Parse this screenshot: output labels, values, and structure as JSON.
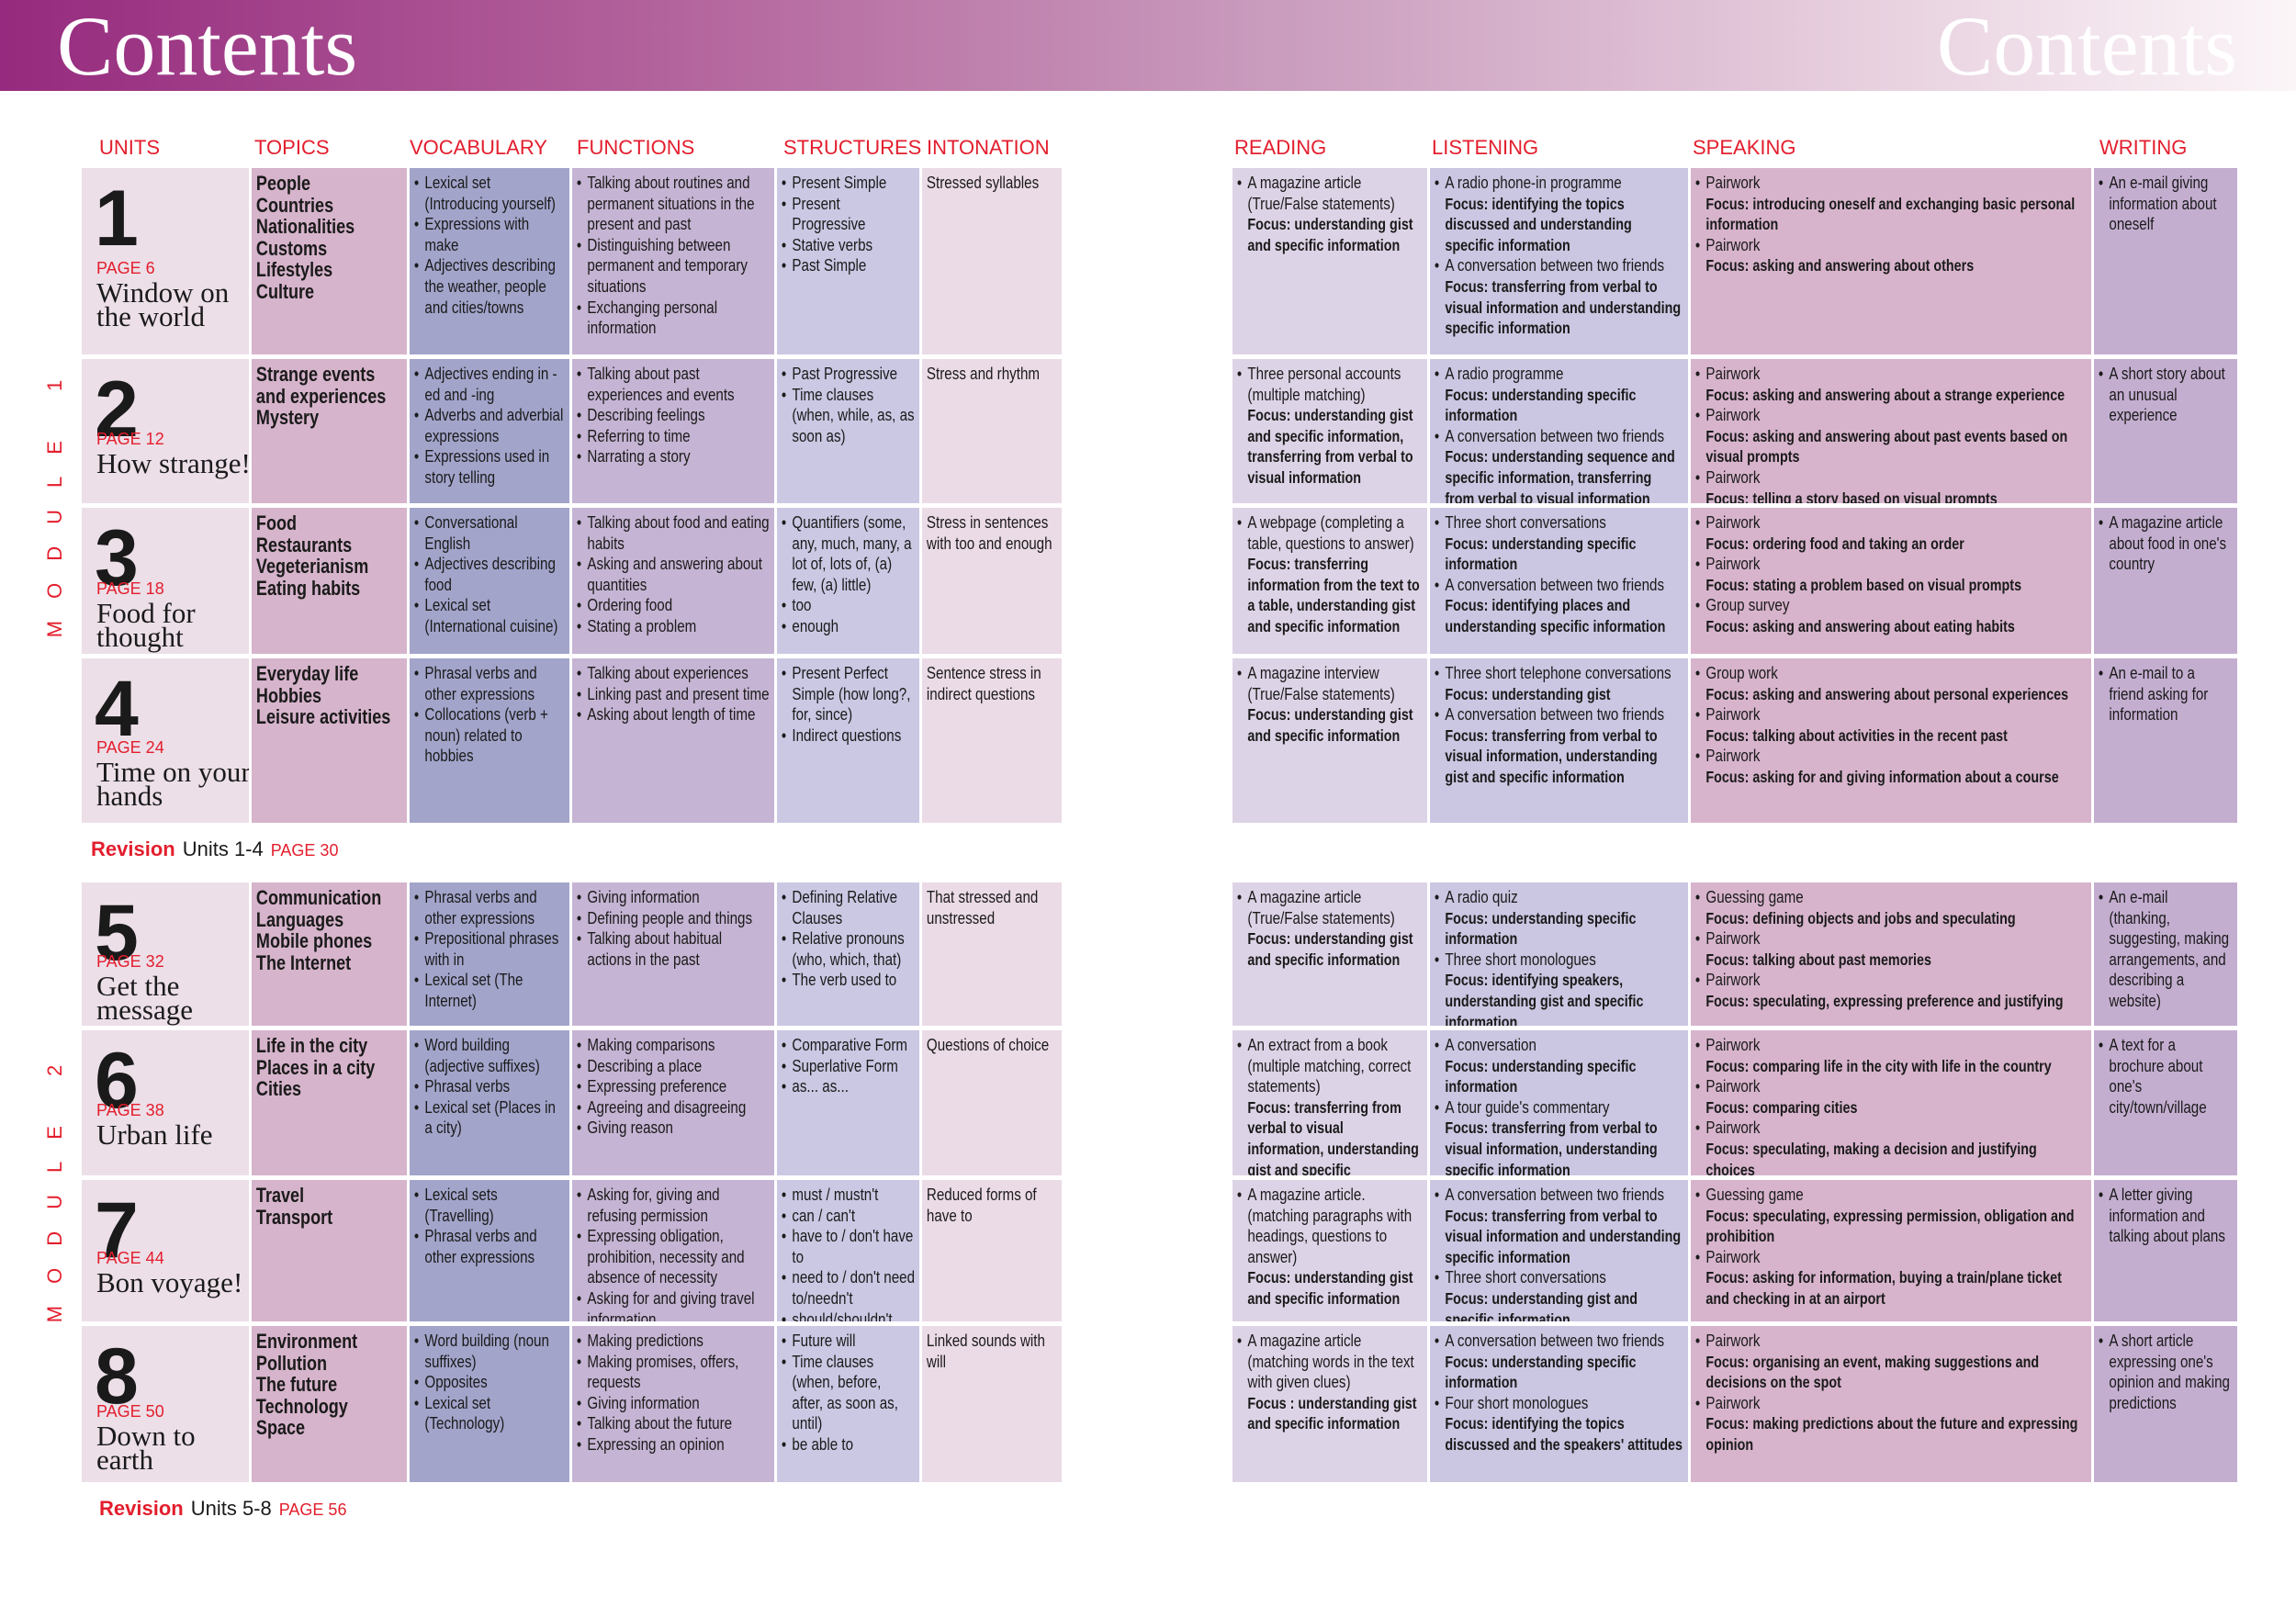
{
  "header": {
    "title_left": "Contents",
    "title_right": "Contents"
  },
  "left_headers": [
    "UNITS",
    "TOPICS",
    "VOCABULARY",
    "FUNCTIONS",
    "STRUCTURES",
    "INTONATION"
  ],
  "right_headers": [
    "READING",
    "LISTENING",
    "SPEAKING",
    "WRITING"
  ],
  "modules": [
    "MODULE 1",
    "MODULE 2"
  ],
  "revisions": [
    {
      "label": "Revision",
      "units": "Units 1-4",
      "page": "PAGE 30"
    },
    {
      "label": "Revision",
      "units": "Units 5-8",
      "page": "PAGE 56"
    }
  ],
  "units": [
    {
      "number": "1",
      "page": "PAGE 6",
      "title": "Window on the world",
      "topics": [
        "People",
        "Countries",
        "Nationalities",
        "Customs",
        "Lifestyles",
        "Culture"
      ],
      "vocabulary": [
        "Lexical set (Introducing yourself)",
        "Expressions with make",
        "Adjectives describing the weather, people and cities/towns"
      ],
      "functions": [
        "Talking about routines and permanent situations in the present and past",
        "Distinguishing between permanent and temporary situations",
        "Exchanging personal information"
      ],
      "structures": [
        "Present Simple",
        "Present Progressive",
        "Stative verbs",
        "Past Simple"
      ],
      "intonation": "Stressed syllables",
      "reading": [
        {
          "text": "A magazine article (True/False statements)",
          "focus": "Focus: understanding gist and specific information"
        }
      ],
      "listening": [
        {
          "text": "A radio phone-in programme",
          "focus": "Focus: identifying the topics discussed and understanding specific information"
        },
        {
          "text": "A conversation between two friends",
          "focus": "Focus: transferring from verbal to visual information and understanding specific information"
        }
      ],
      "speaking": [
        {
          "text": "Pairwork",
          "focus": "Focus: introducing oneself and exchanging basic personal information"
        },
        {
          "text": "Pairwork",
          "focus": "Focus: asking and answering about others"
        }
      ],
      "writing": [
        "An e-mail giving information about oneself"
      ]
    },
    {
      "number": "2",
      "page": "PAGE 12",
      "title": "How strange!",
      "topics": [
        "Strange events and experiences",
        "Mystery"
      ],
      "vocabulary": [
        "Adjectives ending in -ed and -ing",
        "Adverbs and adverbial expressions",
        "Expressions used in story telling"
      ],
      "functions": [
        "Talking about past experiences and events",
        "Describing feelings",
        "Referring to time",
        "Narrating a story"
      ],
      "structures": [
        "Past Progressive",
        "Time clauses (when, while, as, as soon as)"
      ],
      "intonation": "Stress and rhythm",
      "reading": [
        {
          "text": "Three personal accounts (multiple matching)",
          "focus": "Focus: understanding gist and specific information, transferring from verbal to visual information"
        }
      ],
      "listening": [
        {
          "text": "A radio programme",
          "focus": "Focus: understanding specific information"
        },
        {
          "text": "A conversation between two friends",
          "focus": "Focus: understanding sequence and specific information, transferring from verbal to visual information"
        }
      ],
      "speaking": [
        {
          "text": "Pairwork",
          "focus": "Focus: asking and answering about a strange experience"
        },
        {
          "text": "Pairwork",
          "focus": "Focus: asking and answering about past events based on visual prompts"
        },
        {
          "text": "Pairwork",
          "focus": "Focus: telling a story based on visual prompts"
        }
      ],
      "writing": [
        "A short story about an unusual experience"
      ]
    },
    {
      "number": "3",
      "page": "PAGE 18",
      "title": "Food for thought",
      "topics": [
        "Food",
        "Restaurants",
        "Vegeterianism",
        "Eating habits"
      ],
      "vocabulary": [
        "Conversational English",
        "Adjectives describing food",
        "Lexical set (International cuisine)"
      ],
      "functions": [
        "Talking about food and eating habits",
        "Asking and answering about quantities",
        "Ordering food",
        "Stating a problem"
      ],
      "structures": [
        "Quantifiers (some, any, much, many, a lot of, lots of, (a) few, (a) little)",
        "too",
        "enough"
      ],
      "intonation": "Stress in sentences with too and enough",
      "reading": [
        {
          "text": "A webpage (completing a table, questions to answer)",
          "focus": "Focus: transferring information from the text to a table, understanding gist and specific information"
        }
      ],
      "listening": [
        {
          "text": "Three short conversations",
          "focus": "Focus: understanding specific information"
        },
        {
          "text": "A conversation between two friends",
          "focus": "Focus: identifying places and understanding specific information"
        }
      ],
      "speaking": [
        {
          "text": "Pairwork",
          "focus": "Focus: ordering food and taking an order"
        },
        {
          "text": "Pairwork",
          "focus": "Focus: stating a problem based on visual prompts"
        },
        {
          "text": "Group survey",
          "focus": "Focus: asking and answering about eating habits"
        }
      ],
      "writing": [
        "A magazine article about food in one's country"
      ]
    },
    {
      "number": "4",
      "page": "PAGE 24",
      "title": "Time on your hands",
      "topics": [
        "Everyday life",
        "Hobbies",
        "Leisure activities"
      ],
      "vocabulary": [
        "Phrasal verbs and other expressions",
        "Collocations (verb + noun) related to hobbies"
      ],
      "functions": [
        "Talking about experiences",
        "Linking past and present time",
        "Asking about length of time"
      ],
      "structures": [
        "Present Perfect Simple (how long?, for, since)",
        "Indirect questions"
      ],
      "intonation": "Sentence stress in indirect questions",
      "reading": [
        {
          "text": "A magazine interview (True/False statements)",
          "focus": "Focus: understanding gist and specific information"
        }
      ],
      "listening": [
        {
          "text": "Three short telephone conversations",
          "focus": "Focus: understanding gist"
        },
        {
          "text": "A conversation between two friends",
          "focus": "Focus: transferring from verbal to visual information, understanding gist and specific information"
        }
      ],
      "speaking": [
        {
          "text": "Group work",
          "focus": "Focus: asking and answering about personal experiences"
        },
        {
          "text": "Pairwork",
          "focus": "Focus: talking about activities in the recent past"
        },
        {
          "text": "Pairwork",
          "focus": "Focus: asking for and giving information about a course"
        }
      ],
      "writing": [
        "An e-mail to a friend asking for information"
      ]
    },
    {
      "number": "5",
      "page": "PAGE 32",
      "title": "Get the message",
      "topics": [
        "Communication",
        "Languages",
        "Mobile phones",
        "The Internet"
      ],
      "vocabulary": [
        "Phrasal verbs and other expressions",
        "Prepositional phrases with in",
        "Lexical set (The Internet)"
      ],
      "functions": [
        "Giving information",
        "Defining people and things",
        "Talking about habitual actions in the past"
      ],
      "structures": [
        "Defining Relative Clauses",
        "Relative pronouns (who, which, that)",
        "The verb used to"
      ],
      "intonation": "That stressed and unstressed",
      "reading": [
        {
          "text": "A magazine article (True/False statements)",
          "focus": "Focus: understanding gist and specific information"
        }
      ],
      "listening": [
        {
          "text": "A radio quiz",
          "focus": "Focus: understanding specific information"
        },
        {
          "text": "Three short monologues",
          "focus": "Focus: identifying speakers, understanding gist and specific information"
        }
      ],
      "speaking": [
        {
          "text": "Guessing game",
          "focus": "Focus: defining objects and jobs and speculating"
        },
        {
          "text": "Pairwork",
          "focus": "Focus: talking about past memories"
        },
        {
          "text": "Pairwork",
          "focus": "Focus: speculating, expressing preference and justifying"
        }
      ],
      "writing": [
        "An e-mail (thanking, suggesting, making arrangements, and describing a website)"
      ]
    },
    {
      "number": "6",
      "page": "PAGE 38",
      "title": "Urban life",
      "topics": [
        "Life in the city",
        "Places in a city",
        "Cities"
      ],
      "vocabulary": [
        "Word building (adjective suffixes)",
        "Phrasal verbs",
        "Lexical set (Places in a city)"
      ],
      "functions": [
        "Making comparisons",
        "Describing a place",
        "Expressing preference",
        "Agreeing and disagreeing",
        "Giving reason"
      ],
      "structures": [
        "Comparative Form",
        "Superlative Form",
        "as... as..."
      ],
      "intonation": "Questions of choice",
      "reading": [
        {
          "text": "An extract from a book (multiple matching, correct statements)",
          "focus": "Focus: transferring from verbal to visual information, understanding gist and specific information"
        }
      ],
      "listening": [
        {
          "text": "A conversation",
          "focus": "Focus: understanding specific information"
        },
        {
          "text": "A tour guide's commentary",
          "focus": "Focus: transferring from verbal to visual information, understanding specific information"
        }
      ],
      "speaking": [
        {
          "text": "Pairwork",
          "focus": "Focus: comparing life in the city with life in the country"
        },
        {
          "text": "Pairwork",
          "focus": "Focus: comparing cities"
        },
        {
          "text": "Pairwork",
          "focus": "Focus: speculating, making a decision and justifying choices"
        }
      ],
      "writing": [
        "A text for a brochure about one's city/town/village"
      ]
    },
    {
      "number": "7",
      "page": "PAGE 44",
      "title": "Bon voyage!",
      "topics": [
        "Travel",
        "Transport"
      ],
      "vocabulary": [
        "Lexical sets (Travelling)",
        "Phrasal verbs and other expressions"
      ],
      "functions": [
        "Asking for, giving and refusing permission",
        "Expressing obligation, prohibition, necessity and absence of necessity",
        "Asking for and giving travel information"
      ],
      "structures": [
        "must / mustn't",
        "can / can't",
        "have to / don't have to",
        "need to / don't need to/needn't",
        "should/shouldn't"
      ],
      "intonation": "Reduced forms of have to",
      "reading": [
        {
          "text": "A magazine article. (matching paragraphs with headings, questions to answer)",
          "focus": "Focus: understanding gist and specific information"
        }
      ],
      "listening": [
        {
          "text": "A conversation between two friends",
          "focus": "Focus: transferring from verbal to visual information and understanding specific information"
        },
        {
          "text": "Three short conversations",
          "focus": "Focus: understanding gist and specific information"
        }
      ],
      "speaking": [
        {
          "text": "Guessing game",
          "focus": "Focus: speculating, expressing permission, obligation and prohibition"
        },
        {
          "text": "Pairwork",
          "focus": "Focus: asking for information, buying a train/plane ticket and checking in at an airport"
        }
      ],
      "writing": [
        "A letter giving information and talking about plans"
      ]
    },
    {
      "number": "8",
      "page": "PAGE 50",
      "title": "Down to earth",
      "topics": [
        "Environment",
        "Pollution",
        "The future",
        "Technology",
        "Space"
      ],
      "vocabulary": [
        "Word building (noun suffixes)",
        "Opposites",
        "Lexical set (Technology)"
      ],
      "functions": [
        "Making predictions",
        "Making promises, offers, requests",
        "Giving information",
        "Talking about the future",
        "Expressing an opinion"
      ],
      "structures": [
        "Future will",
        "Time clauses (when, before, after, as soon as, until)",
        "be able to"
      ],
      "intonation": "Linked sounds with will",
      "reading": [
        {
          "text": "A magazine article (matching words in the text with given clues)",
          "focus": "Focus : understanding gist and specific information"
        }
      ],
      "listening": [
        {
          "text": "A conversation between two friends",
          "focus": "Focus: understanding specific information"
        },
        {
          "text": "Four short monologues",
          "focus": "Focus: identifying the topics discussed and the speakers' attitudes"
        }
      ],
      "speaking": [
        {
          "text": "Pairwork",
          "focus": "Focus: organising an event, making suggestions and decisions on the spot"
        },
        {
          "text": "Pairwork",
          "focus": "Focus: making predictions about the future and expressing opinion"
        }
      ],
      "writing": [
        "A short article expressing one's opinion and making predictions"
      ]
    }
  ]
}
